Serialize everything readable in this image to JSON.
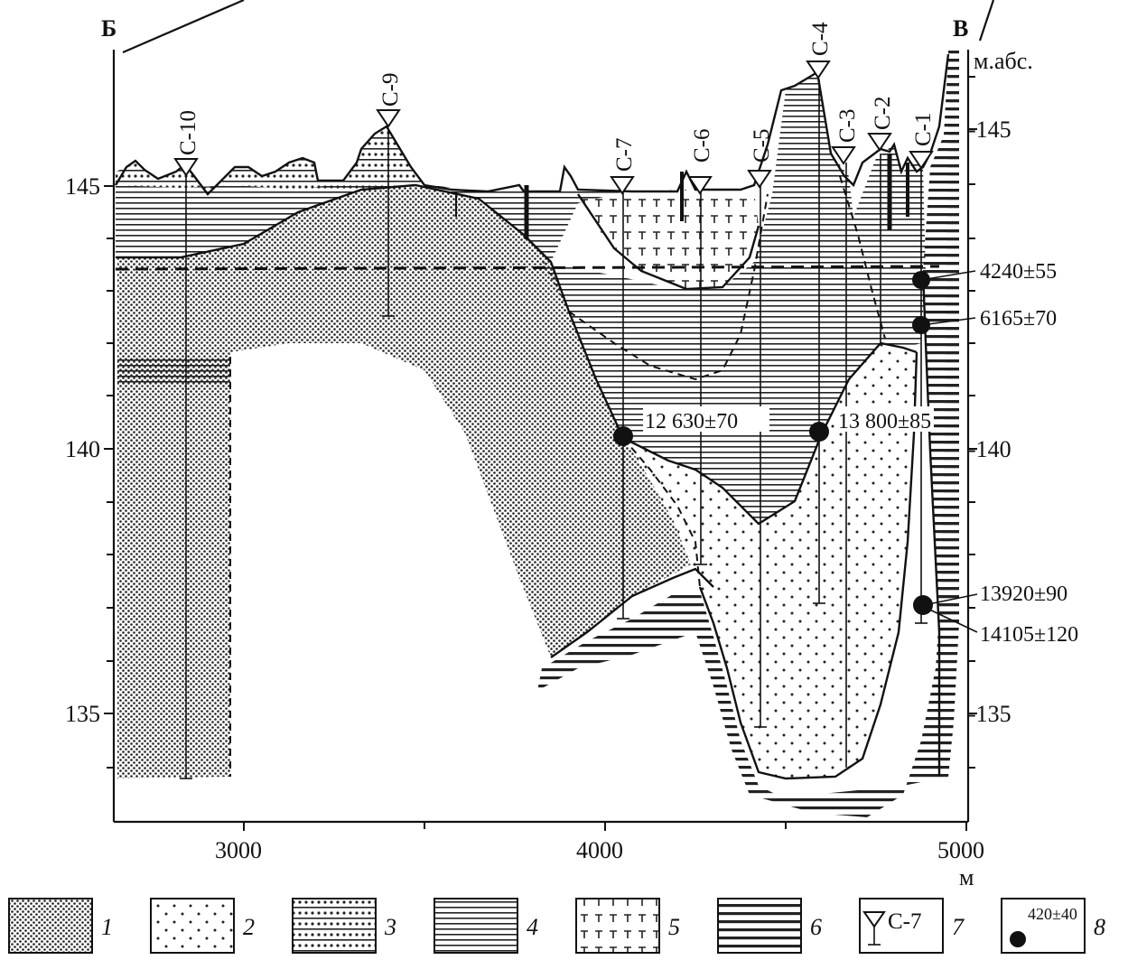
{
  "section": {
    "left_end": "Б",
    "right_end": "В",
    "unit_right": "м.абс.",
    "unit_bottom": "м"
  },
  "axes": {
    "y_left_ticks": [
      "145",
      "140",
      "135"
    ],
    "y_right_ticks": [
      "-145",
      "-140",
      "-135"
    ],
    "x_ticks": [
      "3000",
      "4000",
      "5000"
    ]
  },
  "wells": [
    {
      "id": "С-10"
    },
    {
      "id": "С-9"
    },
    {
      "id": "С-7"
    },
    {
      "id": "С-6"
    },
    {
      "id": "С-5"
    },
    {
      "id": "С-4"
    },
    {
      "id": "С-3"
    },
    {
      "id": "С-2"
    },
    {
      "id": "С-1"
    }
  ],
  "dates": [
    {
      "text": "4240±55"
    },
    {
      "text": "6165±70"
    },
    {
      "text": "12 630±70"
    },
    {
      "text": "13 800±85"
    },
    {
      "text": "13920±90"
    },
    {
      "text": "14105±120"
    }
  ],
  "legend": {
    "items": [
      {
        "num": "1",
        "pattern": "dense-dots"
      },
      {
        "num": "2",
        "pattern": "sparse-dots"
      },
      {
        "num": "3",
        "pattern": "dotted-dashes"
      },
      {
        "num": "4",
        "pattern": "thin-horizontal-lines"
      },
      {
        "num": "5",
        "pattern": "t-symbols"
      },
      {
        "num": "6",
        "pattern": "thick-horizontal-lines"
      },
      {
        "num": "7",
        "well_label": "С-7"
      },
      {
        "num": "8",
        "date_label": "420±40"
      }
    ]
  }
}
